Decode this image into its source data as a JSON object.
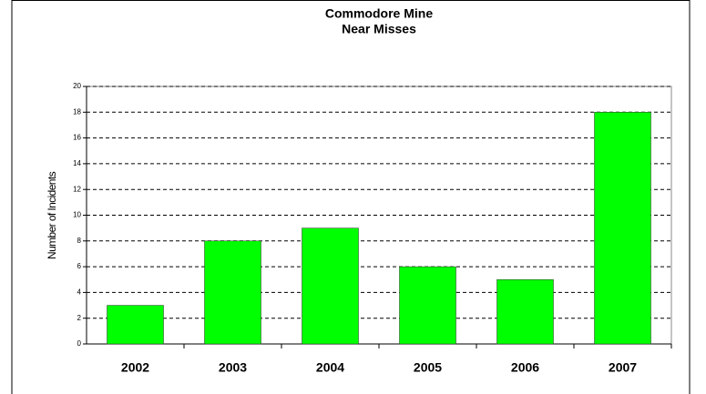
{
  "chart_data": {
    "type": "bar",
    "title": [
      "Commodore Mine",
      "Near Misses"
    ],
    "y_label": "Number of Incidents",
    "categories": [
      "2002",
      "2003",
      "2004",
      "2005",
      "2006",
      "2007"
    ],
    "values": [
      3,
      8,
      9,
      6,
      5,
      18
    ],
    "color": "#00ff00",
    "ylim": [
      0,
      20
    ],
    "yticks": [
      0,
      2,
      4,
      6,
      8,
      10,
      12,
      14,
      16,
      18,
      20
    ],
    "grid": true
  }
}
